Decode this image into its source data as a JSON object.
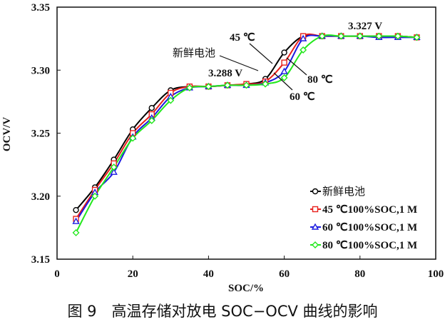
{
  "chart_data": {
    "type": "line",
    "xlabel": "SOC/%",
    "ylabel": "OCV/V",
    "xlim": [
      0,
      100
    ],
    "ylim": [
      3.15,
      3.35
    ],
    "xticks": [
      "0",
      "20",
      "40",
      "60",
      "80",
      "100"
    ],
    "yticks": [
      "3.15",
      "3.20",
      "3.25",
      "3.30",
      "3.35"
    ],
    "x": [
      5,
      10,
      15,
      20,
      25,
      30,
      35,
      40,
      45,
      50,
      55,
      60,
      65,
      70,
      75,
      80,
      85,
      90,
      95
    ],
    "series": [
      {
        "name": "新鲜电池",
        "color": "#000000",
        "marker": "circle",
        "values": [
          3.189,
          3.207,
          3.229,
          3.253,
          3.27,
          3.284,
          3.287,
          3.287,
          3.288,
          3.289,
          3.293,
          3.314,
          3.327,
          3.327,
          3.327,
          3.327,
          3.327,
          3.327,
          3.326
        ]
      },
      {
        "name": "45 ℃100%SOC,1 M",
        "color": "#e8201c",
        "marker": "square",
        "values": [
          3.182,
          3.205,
          3.226,
          3.25,
          3.265,
          3.282,
          3.287,
          3.287,
          3.288,
          3.289,
          3.291,
          3.306,
          3.327,
          3.327,
          3.327,
          3.327,
          3.327,
          3.327,
          3.326
        ]
      },
      {
        "name": "60 ℃100%SOC,1 M",
        "color": "#1c1ce0",
        "marker": "triangle",
        "values": [
          3.18,
          3.203,
          3.219,
          3.247,
          3.262,
          3.279,
          3.286,
          3.287,
          3.288,
          3.288,
          3.29,
          3.299,
          3.325,
          3.327,
          3.327,
          3.327,
          3.326,
          3.326,
          3.326
        ]
      },
      {
        "name": "80 ℃100%SOC,1 M",
        "color": "#22e81c",
        "marker": "diamond",
        "values": [
          3.171,
          3.2,
          3.223,
          3.246,
          3.26,
          3.276,
          3.286,
          3.287,
          3.288,
          3.288,
          3.289,
          3.294,
          3.316,
          3.327,
          3.327,
          3.327,
          3.327,
          3.327,
          3.326
        ]
      }
    ],
    "annotations": {
      "plateau1": "3.288 V",
      "plateau2": "3.327 V",
      "fresh": "新鲜电池",
      "t45": "45 ℃",
      "t60": "60 ℃",
      "t80": "80 ℃"
    },
    "legend": "bottom-right",
    "grid": false
  },
  "caption": "图 9　高温存储对放电 SOC−OCV 曲线的影响"
}
